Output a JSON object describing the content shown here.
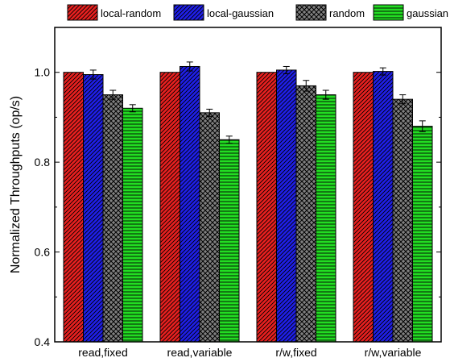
{
  "chart_data": {
    "type": "bar",
    "categories": [
      "read,fixed",
      "read,variable",
      "r/w,fixed",
      "r/w,variable"
    ],
    "series": [
      {
        "name": "local-random",
        "values": [
          1.0,
          1.0,
          1.0,
          1.0
        ],
        "errors": [
          0.0,
          0.0,
          0.0,
          0.0
        ],
        "color": "#e8201f",
        "pattern": "diag-dense"
      },
      {
        "name": "local-gaussian",
        "values": [
          0.995,
          1.013,
          1.005,
          1.002
        ],
        "errors": [
          0.01,
          0.01,
          0.008,
          0.008
        ],
        "color": "#1f1fe8",
        "pattern": "diag-dense"
      },
      {
        "name": "random",
        "values": [
          0.95,
          0.91,
          0.97,
          0.94
        ],
        "errors": [
          0.01,
          0.008,
          0.012,
          0.01
        ],
        "color": "#808080",
        "pattern": "crosshatch"
      },
      {
        "name": "gaussian",
        "values": [
          0.92,
          0.85,
          0.95,
          0.88
        ],
        "errors": [
          0.008,
          0.008,
          0.01,
          0.012
        ],
        "color": "#22dd22",
        "pattern": "horizontal"
      }
    ],
    "title": "",
    "xlabel": "",
    "ylabel": "Normalized Throughputs (op/s)",
    "ylim": [
      0.4,
      1.1
    ],
    "yticks": [
      0.4,
      0.6,
      0.8,
      1.0
    ],
    "ytick_labels": [
      "0.4",
      "0.6",
      "0.8",
      "1.0"
    ],
    "grid": false,
    "legend_position": "top"
  }
}
